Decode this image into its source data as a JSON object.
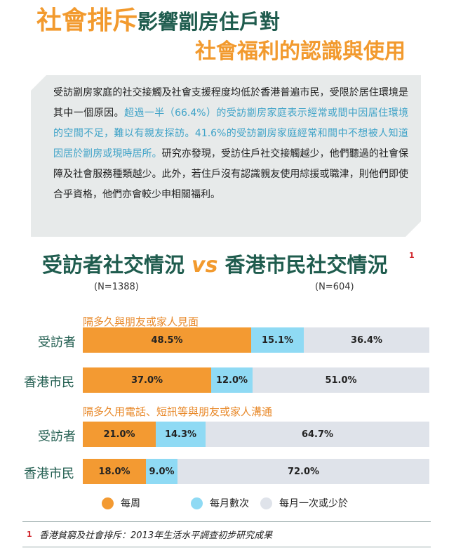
{
  "title": {
    "part1_orange": "社會排斥",
    "part1_green": "影響劏房住戶對",
    "line2": "社會福利的認識與使用"
  },
  "summary": {
    "seg1": "受訪劏房家庭的社交接觸及社會支援程度均低於香港普遍市民，受限於居住環境是其中一個原因。",
    "seg2": "超過一半（66.4%）的受訪劏房家庭表示經常或間中因居住環境的空間不足，難以有親友探訪。41.6%的受訪劏房家庭經常和間中不想被人知道因居於劏房或現時居所。",
    "seg3": "研究亦發現，受訪住戶社交接觸越少，他們聽過的社會保障及社會服務種類越少。此外，若住戶沒有認識親友使用綜援或職津，則他們即使合乎資格，他們亦會較少申相關福利。"
  },
  "compare": {
    "left": "受訪者社交情況",
    "vs": "vs",
    "right": "香港市民社交情況",
    "footnote_mark": "1",
    "n_left": "(N=1388)",
    "n_right": "(N=604)"
  },
  "chart_data": {
    "type": "bar",
    "orientation": "horizontal-stacked-100",
    "series_names": [
      "每周",
      "每月數次",
      "每月一次或少於"
    ],
    "colors": [
      "#f39a32",
      "#8fdaf4",
      "#dfe3ea"
    ],
    "groups": [
      {
        "title": "隔多久與朋友或家人見面",
        "rows": [
          {
            "label": "受訪者",
            "values": [
              48.5,
              15.1,
              36.4
            ],
            "labels": [
              "48.5%",
              "15.1%",
              "36.4%"
            ]
          },
          {
            "label": "香港市民",
            "values": [
              37.0,
              12.0,
              51.0
            ],
            "labels": [
              "37.0%",
              "12.0%",
              "51.0%"
            ]
          }
        ]
      },
      {
        "title": "隔多久用電話、短訊等與朋友或家人溝通",
        "rows": [
          {
            "label": "受訪者",
            "values": [
              21.0,
              14.3,
              64.7
            ],
            "labels": [
              "21.0%",
              "14.3%",
              "64.7%"
            ]
          },
          {
            "label": "香港市民",
            "values": [
              18.0,
              9.0,
              72.0
            ],
            "labels": [
              "18.0%",
              "9.0%",
              "72.0%"
            ]
          }
        ]
      }
    ]
  },
  "legend": {
    "items": [
      "每周",
      "每月數次",
      "每月一次或少於"
    ]
  },
  "footnote": {
    "number": "1",
    "text": "香港貧窮及社會排斥：2013年生活水平調查初步研究成果"
  }
}
